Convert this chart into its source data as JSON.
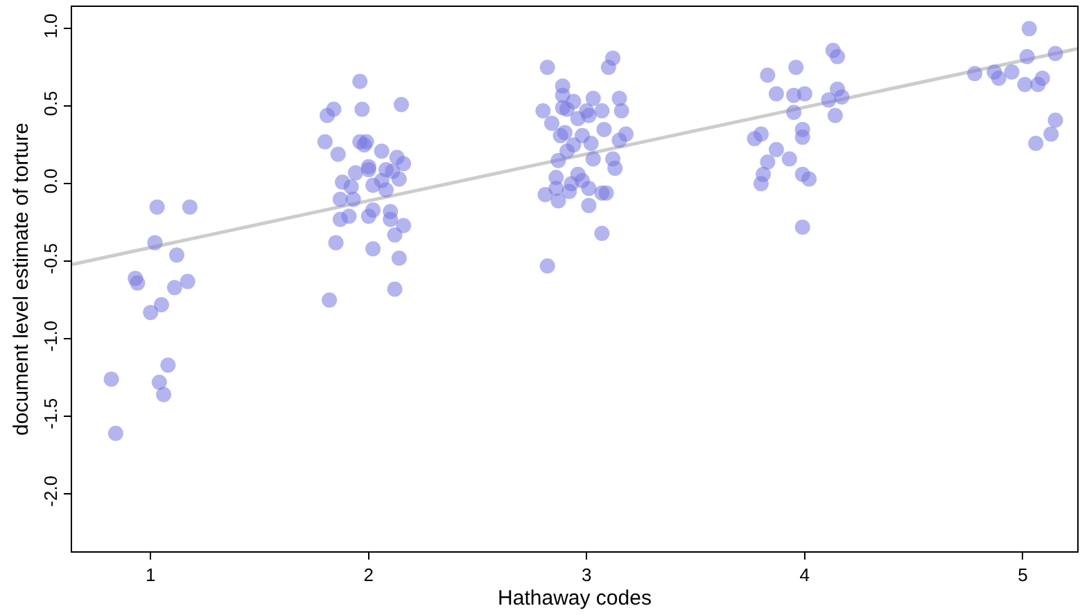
{
  "chart_data": {
    "type": "scatter",
    "xlabel": "Hathaway codes",
    "ylabel": "document level estimate of torture",
    "xlim": [
      0.64,
      5.25
    ],
    "ylim": [
      -2.37,
      1.14
    ],
    "xticks": [
      1,
      2,
      3,
      4,
      5
    ],
    "yticks": [
      {
        "value": -2,
        "label": "-2.0"
      },
      {
        "value": -1.5,
        "label": "-1.5"
      },
      {
        "value": -1,
        "label": "-1.0"
      },
      {
        "value": -0.5,
        "label": "-0.5"
      },
      {
        "value": 0,
        "label": "0.0"
      },
      {
        "value": 0.5,
        "label": "0.5"
      },
      {
        "value": 1,
        "label": "1.0"
      }
    ],
    "marker": "circle",
    "series": [
      {
        "color": "#7777e0",
        "x": [
          1.03,
          1.18,
          1.02,
          1.12,
          0.93,
          0.94,
          1.11,
          1.17,
          1.05,
          1.0,
          1.08,
          0.82,
          1.04,
          1.06,
          0.84,
          1.96,
          1.84,
          1.81,
          1.97,
          2.15,
          1.8,
          1.86,
          1.96,
          1.99,
          1.98,
          2.06,
          2.13,
          2.16,
          2.0,
          2.0,
          2.08,
          2.11,
          1.94,
          2.14,
          1.88,
          1.92,
          2.02,
          2.06,
          2.08,
          1.87,
          1.93,
          2.02,
          2.0,
          1.91,
          1.87,
          2.1,
          2.1,
          2.16,
          2.12,
          1.85,
          2.02,
          2.14,
          2.12,
          1.82,
          3.12,
          3.1,
          2.82,
          2.89,
          2.89,
          2.94,
          3.03,
          3.15,
          2.8,
          2.89,
          2.91,
          3.0,
          3.07,
          3.16,
          2.96,
          3.01,
          2.84,
          3.08,
          2.9,
          2.88,
          2.98,
          3.18,
          3.15,
          2.94,
          3.02,
          2.91,
          2.87,
          3.03,
          3.12,
          3.13,
          2.86,
          2.96,
          2.98,
          2.86,
          2.93,
          2.92,
          3.01,
          3.07,
          3.09,
          2.81,
          2.87,
          3.01,
          3.07,
          2.82,
          4.13,
          4.15,
          3.96,
          3.83,
          3.87,
          3.95,
          4.0,
          4.15,
          4.17,
          4.11,
          3.95,
          4.14,
          3.99,
          3.99,
          3.8,
          3.77,
          3.87,
          3.93,
          3.83,
          3.81,
          3.8,
          3.99,
          4.02,
          3.99,
          5.03,
          5.02,
          5.15,
          4.78,
          4.87,
          4.89,
          4.95,
          5.01,
          5.07,
          5.09,
          5.15,
          5.13,
          5.06
        ],
        "values": [
          -0.15,
          -0.15,
          -0.38,
          -0.46,
          -0.61,
          -0.64,
          -0.67,
          -0.63,
          -0.78,
          -0.83,
          -1.17,
          -1.26,
          -1.28,
          -1.36,
          -1.61,
          0.66,
          0.48,
          0.44,
          0.48,
          0.51,
          0.27,
          0.19,
          0.27,
          0.27,
          0.25,
          0.21,
          0.17,
          0.13,
          0.11,
          0.09,
          0.09,
          0.08,
          0.07,
          0.03,
          0.01,
          -0.02,
          -0.01,
          0.02,
          -0.04,
          -0.1,
          -0.1,
          -0.17,
          -0.21,
          -0.21,
          -0.23,
          -0.18,
          -0.23,
          -0.27,
          -0.33,
          -0.38,
          -0.42,
          -0.48,
          -0.68,
          -0.75,
          0.81,
          0.75,
          0.75,
          0.63,
          0.57,
          0.53,
          0.55,
          0.55,
          0.47,
          0.49,
          0.48,
          0.47,
          0.47,
          0.47,
          0.42,
          0.44,
          0.39,
          0.35,
          0.33,
          0.31,
          0.31,
          0.32,
          0.28,
          0.25,
          0.26,
          0.21,
          0.15,
          0.16,
          0.16,
          0.1,
          0.04,
          0.06,
          0.02,
          -0.03,
          0.0,
          -0.05,
          -0.03,
          -0.06,
          -0.06,
          -0.07,
          -0.11,
          -0.14,
          -0.32,
          -0.53,
          0.86,
          0.82,
          0.75,
          0.7,
          0.58,
          0.57,
          0.58,
          0.61,
          0.56,
          0.54,
          0.46,
          0.44,
          0.35,
          0.3,
          0.32,
          0.29,
          0.22,
          0.16,
          0.14,
          0.06,
          0.0,
          0.06,
          0.03,
          -0.28,
          1.0,
          0.82,
          0.84,
          0.71,
          0.72,
          0.68,
          0.72,
          0.64,
          0.64,
          0.68,
          0.41,
          0.32,
          0.26
        ]
      },
      {
        "type": "line",
        "color": "#cccccc",
        "marker": "none",
        "line_style": "solid",
        "x": [
          0.64,
          5.25
        ],
        "values": [
          -0.52,
          0.87
        ]
      }
    ]
  }
}
